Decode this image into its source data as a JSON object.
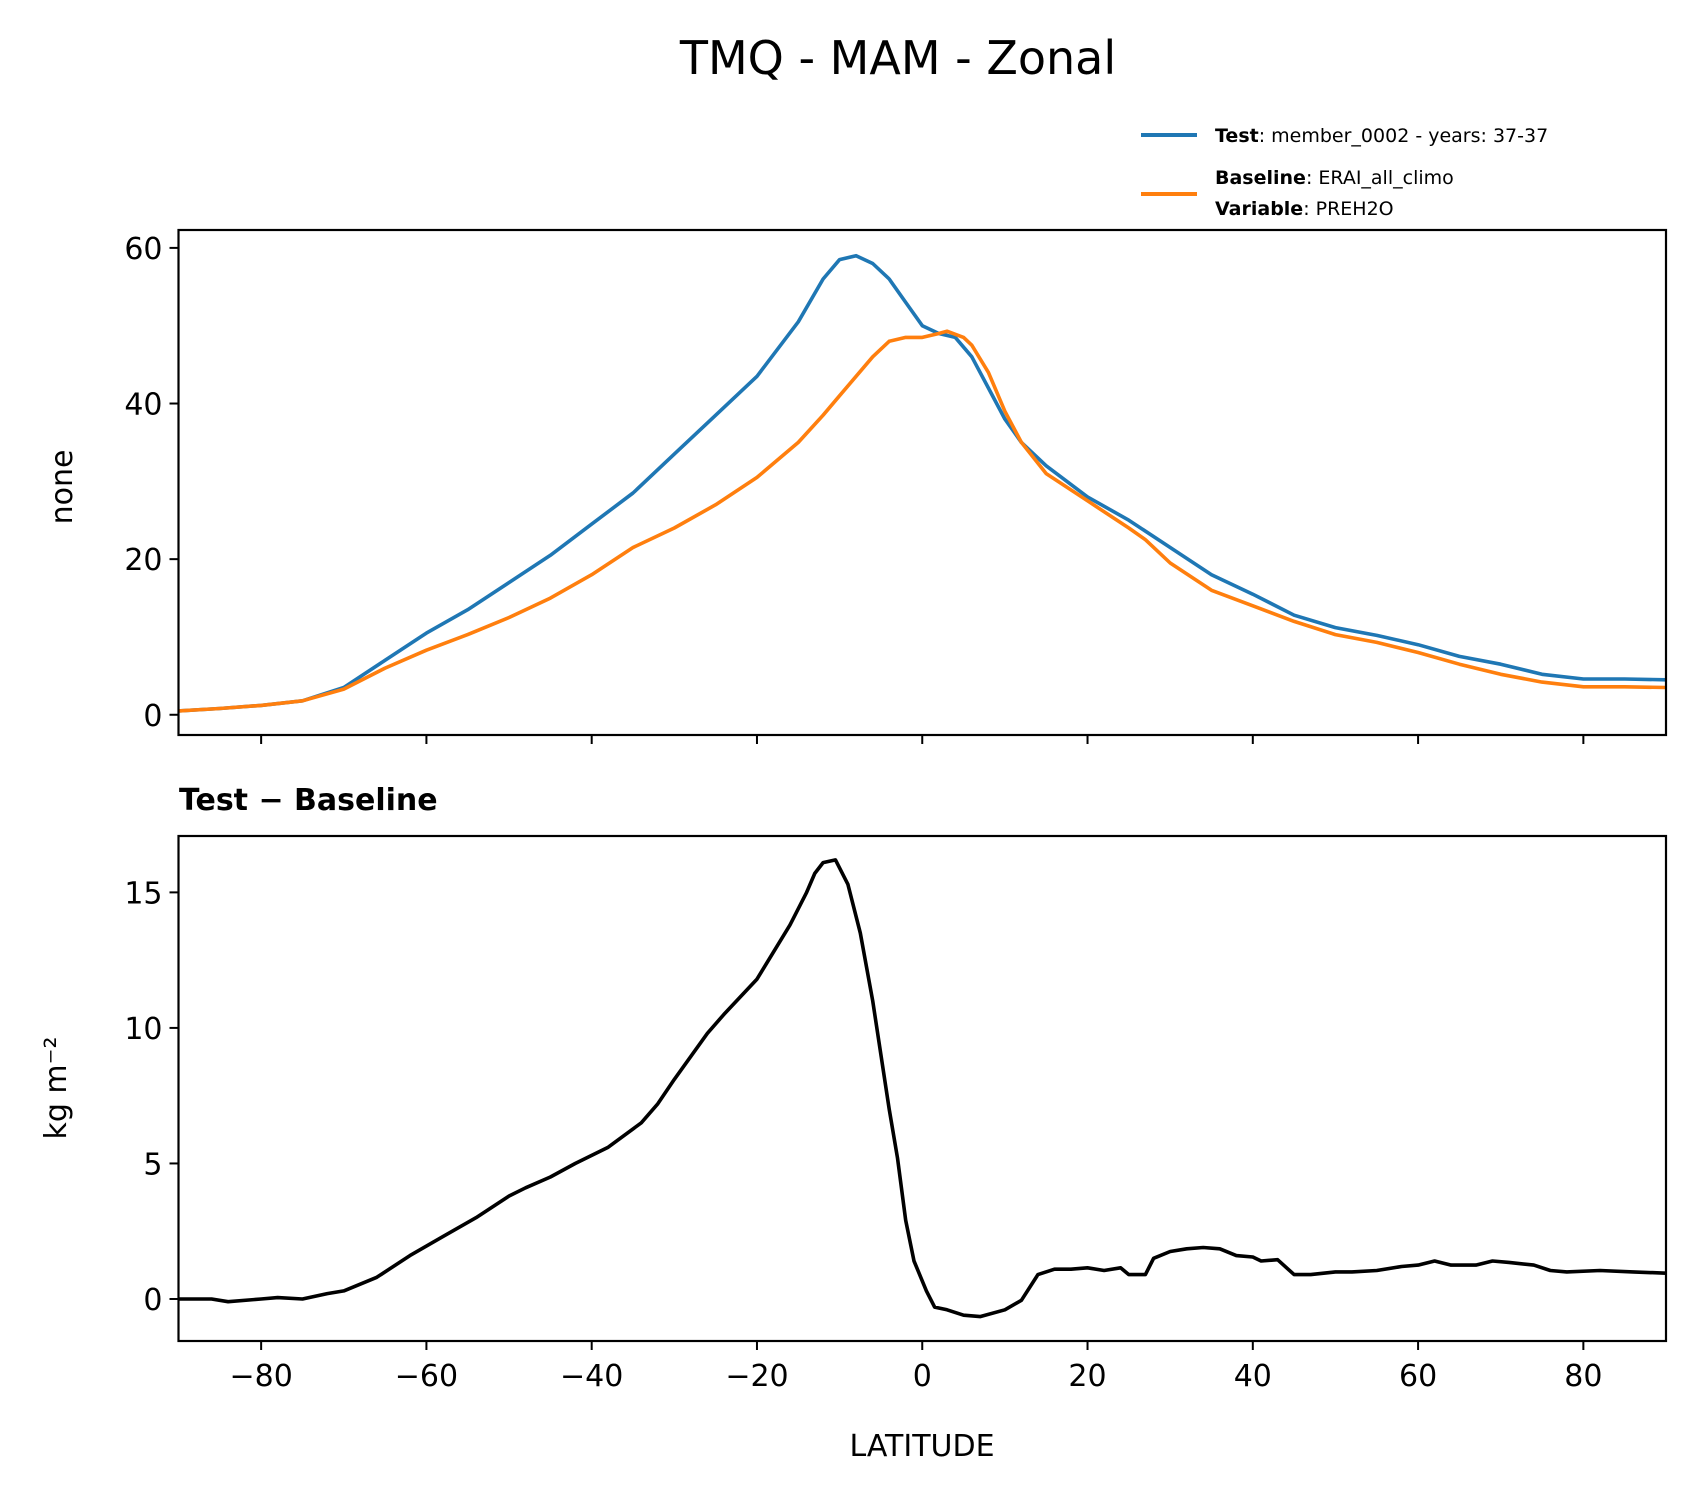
{
  "chart_data": [
    {
      "type": "line",
      "title": "TMQ - MAM - Zonal",
      "ylabel": "none",
      "xlim": [
        -90,
        90
      ],
      "ylim": [
        -2.6,
        62.3
      ],
      "yticks": [
        0,
        20,
        40,
        60
      ],
      "grid": false,
      "legend": {
        "placement": "above top-right",
        "entries": [
          {
            "series": "Test",
            "bold": "Test",
            "text": ": member_0002 - years: 37-37",
            "color": "#1f77b4"
          },
          {
            "series": "Baseline",
            "bold": "Baseline",
            "text": ": ERAI_all_climo",
            "bold2": "Variable",
            "text2": ": PREH2O",
            "color": "#ff7f0e"
          }
        ]
      },
      "series": [
        {
          "name": "Test",
          "color": "#1f77b4",
          "x": [
            -90,
            -85,
            -80,
            -75,
            -70,
            -65,
            -60,
            -55,
            -50,
            -45,
            -40,
            -35,
            -30,
            -25,
            -20,
            -15,
            -12,
            -10,
            -8,
            -6,
            -4,
            -2,
            0,
            2,
            4,
            6,
            8,
            10,
            12,
            15,
            20,
            25,
            30,
            35,
            40,
            45,
            50,
            55,
            60,
            65,
            70,
            75,
            80,
            85,
            90
          ],
          "y": [
            0.5,
            0.8,
            1.2,
            1.8,
            3.5,
            7,
            10.5,
            13.5,
            17,
            20.5,
            24.5,
            28.5,
            33.5,
            38.5,
            43.5,
            50.5,
            56,
            58.5,
            59,
            58,
            56,
            53,
            50,
            49,
            48.5,
            46,
            42,
            38,
            35,
            32,
            28,
            25,
            21.5,
            18,
            15.5,
            12.8,
            11.2,
            10.2,
            9,
            7.5,
            6.5,
            5.2,
            4.6,
            4.6,
            4.5
          ]
        },
        {
          "name": "Baseline",
          "color": "#ff7f0e",
          "x": [
            -90,
            -85,
            -80,
            -75,
            -70,
            -65,
            -60,
            -55,
            -50,
            -45,
            -40,
            -35,
            -30,
            -25,
            -20,
            -15,
            -12,
            -10,
            -8,
            -6,
            -4,
            -2,
            0,
            2,
            3,
            5,
            6,
            8,
            10,
            12,
            15,
            20,
            25,
            27,
            30,
            35,
            40,
            45,
            50,
            55,
            60,
            65,
            70,
            75,
            80,
            85,
            90
          ],
          "y": [
            0.5,
            0.8,
            1.2,
            1.8,
            3.3,
            6,
            8.3,
            10.3,
            12.5,
            15,
            18,
            21.5,
            24,
            27,
            30.5,
            35,
            38.5,
            41,
            43.5,
            46,
            48,
            48.5,
            48.5,
            49,
            49.3,
            48.5,
            47.5,
            44,
            39,
            35,
            31,
            27.5,
            24,
            22.5,
            19.5,
            16,
            14,
            12,
            10.3,
            9.3,
            8,
            6.5,
            5.2,
            4.2,
            3.6,
            3.6,
            3.5
          ]
        }
      ]
    },
    {
      "type": "line",
      "title": "Test − Baseline",
      "xlabel": "LATITUDE",
      "ylabel": "kg m⁻²",
      "xlim": [
        -90,
        90
      ],
      "ylim": [
        -1.55,
        17.08
      ],
      "xticks": [
        -80,
        -60,
        -40,
        -20,
        0,
        20,
        40,
        60,
        80
      ],
      "xticklabels": [
        "−80",
        "−60",
        "−40",
        "−20",
        "0",
        "20",
        "40",
        "60",
        "80"
      ],
      "yticks": [
        0,
        5,
        10,
        15
      ],
      "grid": false,
      "series": [
        {
          "name": "Test - Baseline",
          "color": "#000000",
          "x": [
            -90,
            -86,
            -84,
            -80,
            -78,
            -75,
            -72,
            -70,
            -66,
            -62,
            -58,
            -54,
            -50,
            -48,
            -45,
            -42,
            -38,
            -34,
            -32,
            -30,
            -26,
            -24,
            -20,
            -16,
            -14,
            -13,
            -12,
            -10.5,
            -9,
            -7.5,
            -6,
            -4,
            -3,
            -2,
            -1,
            0.5,
            1.5,
            3,
            5,
            7,
            10,
            12,
            14,
            16,
            18,
            20,
            22,
            24,
            25,
            27,
            28,
            30,
            32,
            34,
            36,
            38,
            40,
            41,
            43,
            45,
            47,
            50,
            52,
            55,
            58,
            60,
            62,
            64,
            67,
            69,
            71,
            74,
            76,
            78,
            82,
            86,
            90
          ],
          "y": [
            0,
            0,
            -0.1,
            0,
            0.05,
            0,
            0.2,
            0.3,
            0.8,
            1.6,
            2.3,
            3,
            3.8,
            4.1,
            4.5,
            5,
            5.6,
            6.5,
            7.2,
            8.1,
            9.8,
            10.5,
            11.8,
            13.8,
            15,
            15.7,
            16.1,
            16.2,
            15.3,
            13.5,
            11,
            7,
            5.2,
            2.9,
            1.4,
            0.3,
            -0.3,
            -0.4,
            -0.6,
            -0.65,
            -0.4,
            -0.05,
            0.9,
            1.1,
            1.1,
            1.15,
            1.05,
            1.15,
            0.9,
            0.9,
            1.5,
            1.75,
            1.85,
            1.9,
            1.85,
            1.6,
            1.55,
            1.4,
            1.45,
            0.9,
            0.9,
            1.0,
            1.0,
            1.05,
            1.2,
            1.25,
            1.4,
            1.25,
            1.25,
            1.4,
            1.35,
            1.25,
            1.05,
            1.0,
            1.05,
            1.0,
            0.95
          ]
        }
      ]
    }
  ]
}
